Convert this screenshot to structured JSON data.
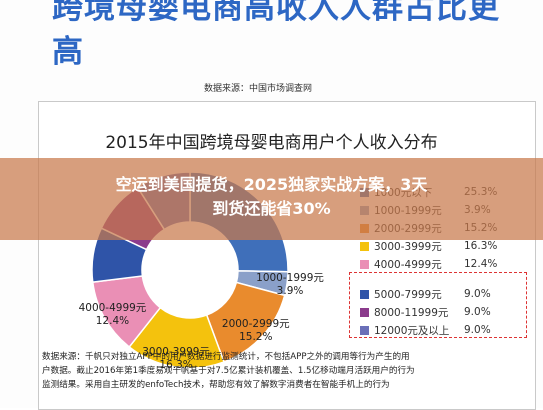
{
  "header": {
    "title_line1": "跨境母婴电商高收入人群占比更",
    "title_line2": "高",
    "source": "数据来源：中国市场调查网"
  },
  "banner": {
    "line1": "空运到美国提货，2025独家实战方案，3天",
    "line2": "到货还能省30%"
  },
  "notes": {
    "line1": "数据来源：千帆只对独立APP中的用户数据进行监测统计，不包括APP之外的调用等行为产生的用",
    "line2": "户数据。截止2016年第1季度易观千帆基于对7.5亿累计装机覆盖、1.5亿移动端月活跃用户的行为",
    "line3": "监测结果。采用自主研发的enfoTech技术，帮助您有效了解数字消费者在智能手机上的行为"
  },
  "chart_data": {
    "type": "pie",
    "title": "2015年中国跨境母婴电商用户个人收入分布",
    "donut": true,
    "categories": [
      "1000元以下",
      "1000-1999元",
      "2000-2999元",
      "3000-3999元",
      "4000-4999元",
      "5000-7999元",
      "8000-11999元",
      "12000元及以上"
    ],
    "values": [
      25.3,
      3.9,
      15.2,
      16.3,
      12.4,
      9.0,
      9.0,
      9.0
    ],
    "value_labels": [
      "25.3%",
      "3.9%",
      "15.2%",
      "16.3%",
      "12.4%",
      "9.0%",
      "9.0%",
      "9.0%"
    ],
    "slice_labels": [
      {
        "name": "",
        "value": ""
      },
      {
        "name": "1000-1999元",
        "value": "3.9%"
      },
      {
        "name": "2000-2999元",
        "value": "15.2%"
      },
      {
        "name": "3000-3999元",
        "value": "16.3%"
      },
      {
        "name": "4000-4999元",
        "value": "12.4%"
      }
    ],
    "colors": [
      "#3f6fba",
      "#8aa0c9",
      "#e98b2d",
      "#f4c20d",
      "#ea8fb5",
      "#2f54a8",
      "#8b3b8c",
      "#6a6fb8"
    ],
    "legend_position": "right",
    "highlighted_categories": [
      "5000-7999元",
      "8000-11999元",
      "12000元及以上"
    ]
  }
}
